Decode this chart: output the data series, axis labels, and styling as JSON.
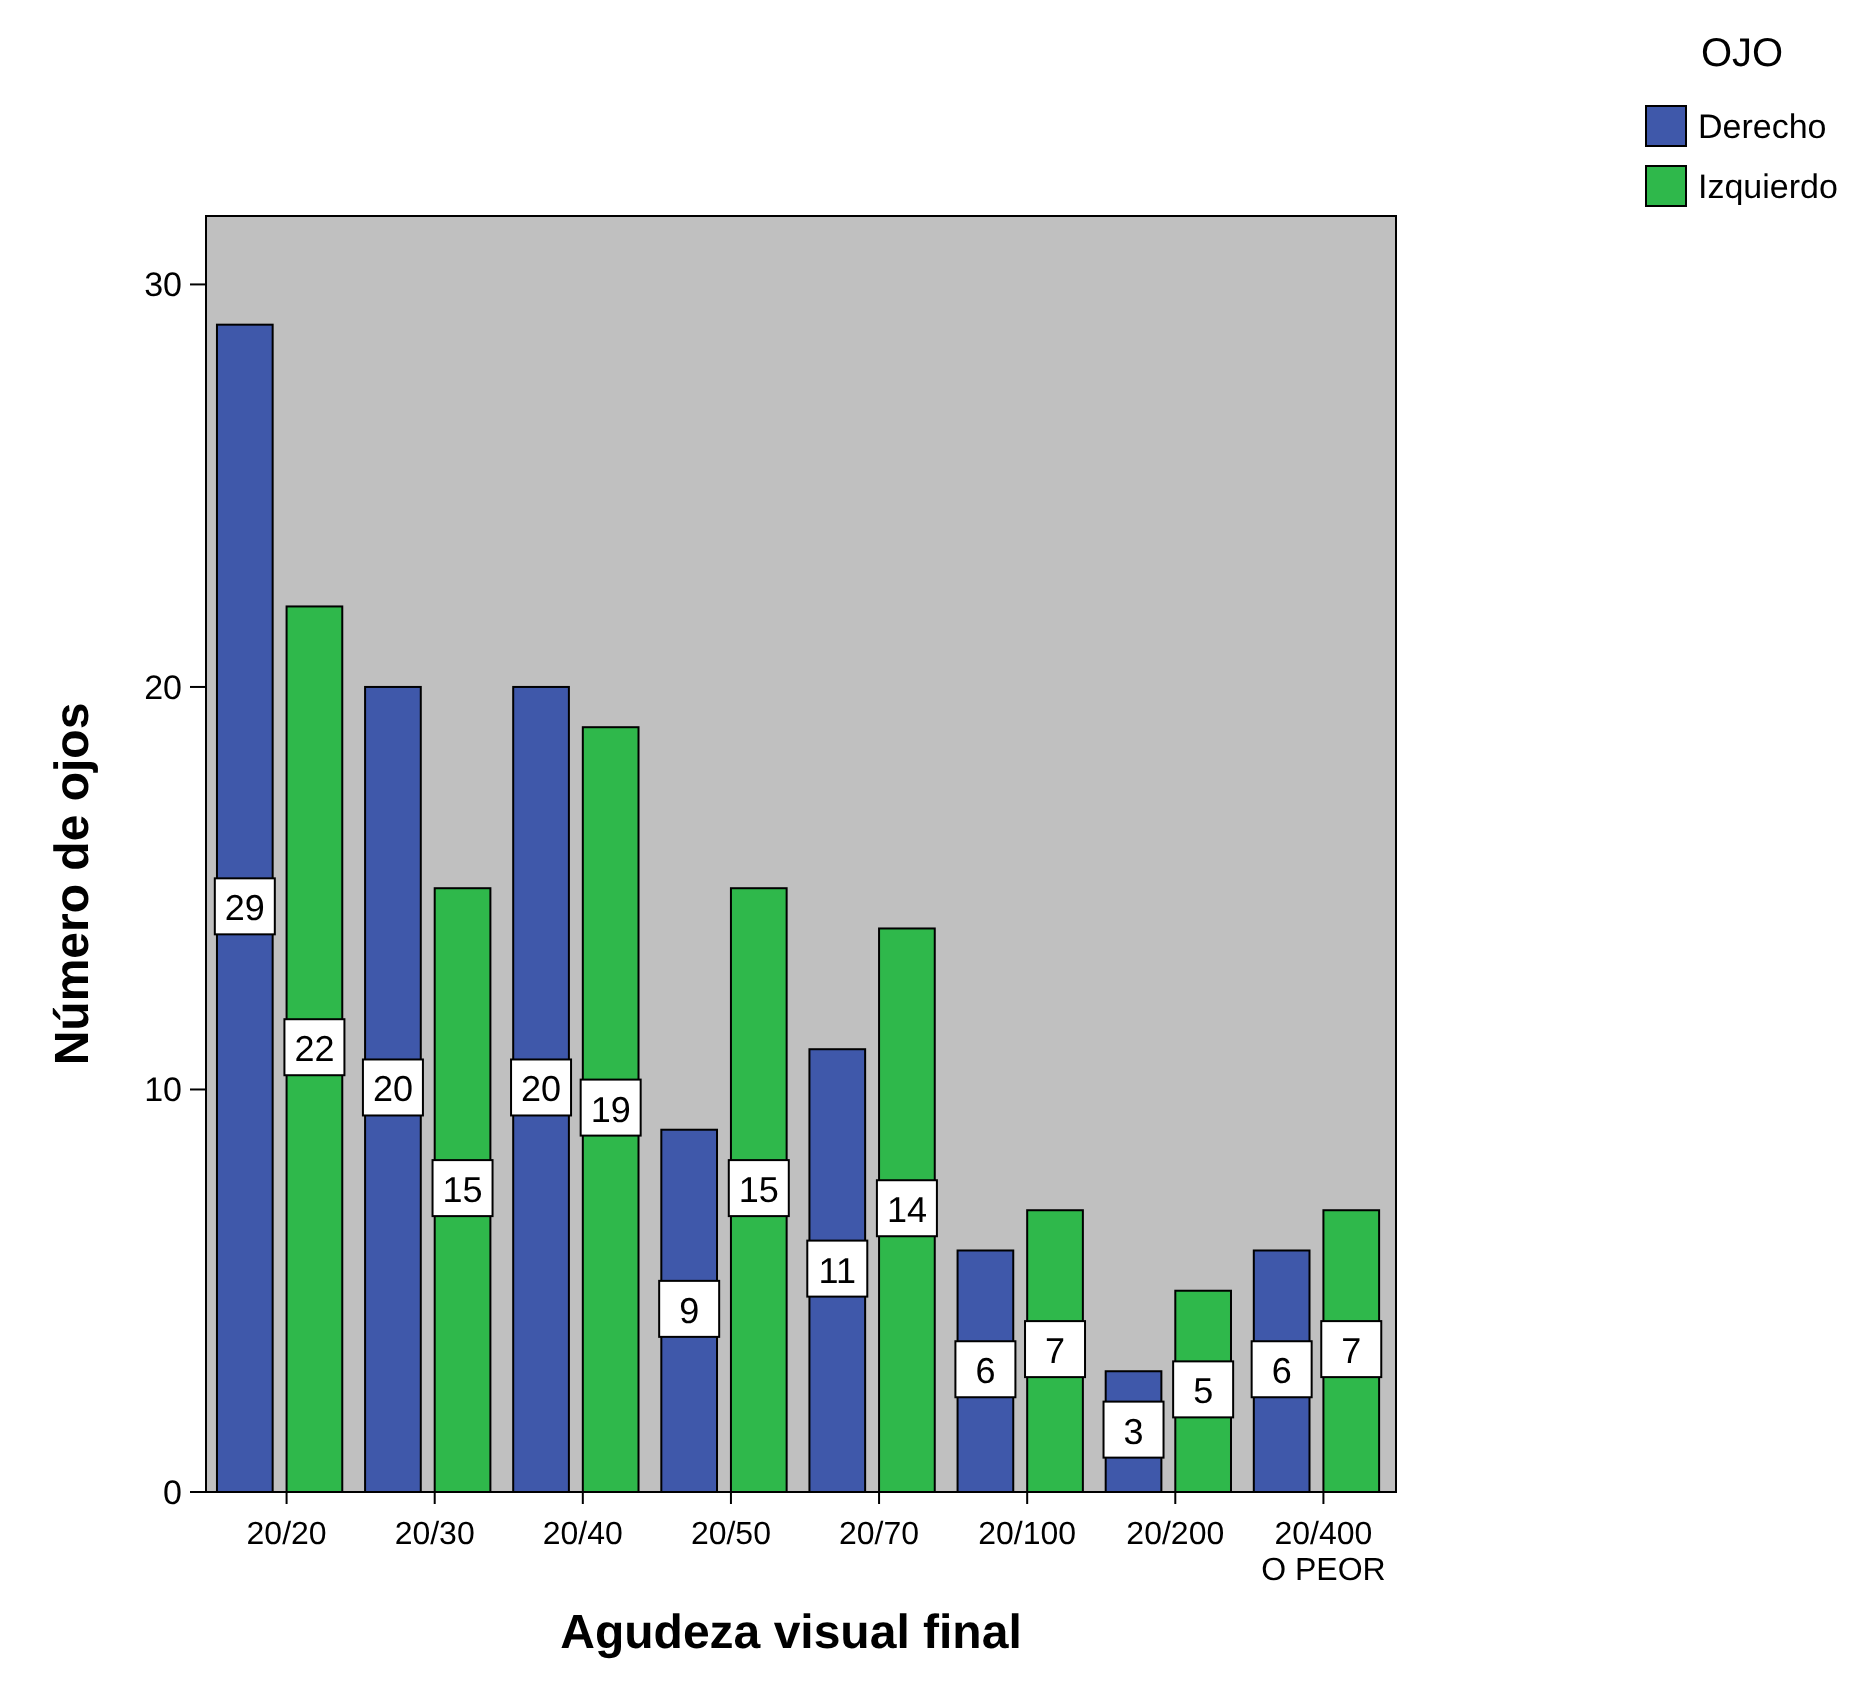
{
  "chart_data": {
    "type": "bar",
    "xlabel": "Agudeza visual final",
    "ylabel": "Número de ojos",
    "legend_title": "OJO",
    "categories": [
      "20/20",
      "20/30",
      "20/40",
      "20/50",
      "20/70",
      "20/100",
      "20/200",
      "20/400 O PEOR"
    ],
    "series": [
      {
        "name": "Derecho",
        "color": "#3f58aa",
        "values": [
          29,
          20,
          20,
          9,
          11,
          6,
          3,
          6
        ]
      },
      {
        "name": "Izquierdo",
        "color": "#2fb84b",
        "values": [
          22,
          15,
          19,
          15,
          14,
          7,
          5,
          7
        ]
      }
    ],
    "ylim": [
      0,
      31.7
    ],
    "yticks": [
      0,
      10,
      20,
      30
    ],
    "data_labels": true,
    "legend": "top right",
    "grid": false
  }
}
